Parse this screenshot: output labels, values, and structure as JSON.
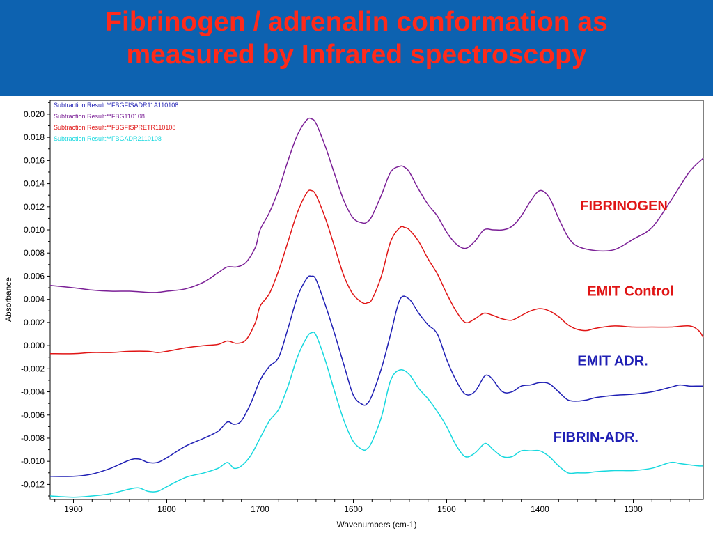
{
  "slide": {
    "title_line1": "Fibrinogen / adrenalin conformation as",
    "title_line2": "measured by Infrared spectroscopy"
  },
  "chart_data": {
    "type": "line",
    "title": "Fibrinogen / adrenalin conformation as measured by Infrared spectroscopy",
    "xlabel": "Wavenumbers (cm-1)",
    "ylabel": "Absorbance",
    "xlim": [
      1925,
      1225
    ],
    "ylim": [
      -0.0133,
      0.0212
    ],
    "x_reversed": true,
    "grid": false,
    "legend_position": "top-left",
    "x_ticks": [
      1900,
      1800,
      1700,
      1600,
      1500,
      1400,
      1300
    ],
    "x_tick_labels": [
      "1900",
      "1800",
      "1700",
      "1600",
      "1500",
      "1400",
      "1300"
    ],
    "y_ticks": [
      0.02,
      0.018,
      0.016,
      0.014,
      0.012,
      0.01,
      0.008,
      0.006,
      0.004,
      0.002,
      0.0,
      -0.002,
      -0.004,
      -0.006,
      -0.008,
      -0.01,
      -0.012
    ],
    "y_tick_labels": [
      "0.020",
      "0.018",
      "0.016",
      "0.014",
      "0.012",
      "0.010",
      "0.008",
      "0.006",
      "0.004",
      "0.002",
      "0.000",
      "-0.002",
      "-0.004",
      "-0.006",
      "-0.008",
      "-0.010",
      "-0.012"
    ],
    "series": [
      {
        "name": "Subtraction Result:**FBGFISADR11A110108",
        "color": "#1f1fb4",
        "x": [
          1925,
          1900,
          1880,
          1860,
          1840,
          1830,
          1820,
          1810,
          1800,
          1780,
          1760,
          1745,
          1735,
          1728,
          1720,
          1710,
          1700,
          1690,
          1680,
          1670,
          1660,
          1650,
          1645,
          1640,
          1630,
          1620,
          1610,
          1600,
          1590,
          1585,
          1580,
          1570,
          1560,
          1550,
          1540,
          1530,
          1520,
          1510,
          1500,
          1490,
          1480,
          1470,
          1460,
          1455,
          1450,
          1440,
          1430,
          1420,
          1410,
          1400,
          1390,
          1380,
          1370,
          1360,
          1350,
          1340,
          1320,
          1300,
          1280,
          1260,
          1250,
          1240,
          1230,
          1225
        ],
        "y": [
          -0.0113,
          -0.0113,
          -0.0111,
          -0.0106,
          -0.0099,
          -0.0098,
          -0.0101,
          -0.0101,
          -0.0097,
          -0.0087,
          -0.008,
          -0.0074,
          -0.0066,
          -0.0068,
          -0.0065,
          -0.005,
          -0.003,
          -0.0018,
          -0.001,
          0.0015,
          0.0042,
          0.0058,
          0.006,
          0.0057,
          0.0035,
          0.001,
          -0.0017,
          -0.0043,
          -0.0051,
          -0.005,
          -0.0043,
          -0.002,
          0.001,
          0.004,
          0.004,
          0.0028,
          0.0018,
          0.001,
          -0.0012,
          -0.003,
          -0.0042,
          -0.004,
          -0.0027,
          -0.0026,
          -0.003,
          -0.004,
          -0.004,
          -0.0035,
          -0.0034,
          -0.0032,
          -0.0033,
          -0.004,
          -0.0047,
          -0.0048,
          -0.0047,
          -0.0045,
          -0.0043,
          -0.0042,
          -0.004,
          -0.0036,
          -0.0034,
          -0.0035,
          -0.0035,
          -0.0035
        ]
      },
      {
        "name": "Subtraction Result:**FBG110108",
        "color": "#7b1f96",
        "x": [
          1925,
          1900,
          1880,
          1860,
          1840,
          1820,
          1810,
          1800,
          1780,
          1760,
          1745,
          1735,
          1725,
          1715,
          1705,
          1700,
          1690,
          1680,
          1670,
          1660,
          1650,
          1645,
          1640,
          1630,
          1620,
          1610,
          1600,
          1590,
          1585,
          1580,
          1570,
          1560,
          1550,
          1545,
          1540,
          1530,
          1520,
          1510,
          1500,
          1490,
          1480,
          1470,
          1460,
          1450,
          1440,
          1430,
          1420,
          1410,
          1400,
          1390,
          1380,
          1370,
          1360,
          1340,
          1320,
          1300,
          1280,
          1260,
          1240,
          1225
        ],
        "y": [
          0.0052,
          0.005,
          0.0048,
          0.0047,
          0.0047,
          0.0046,
          0.0046,
          0.0047,
          0.0049,
          0.0055,
          0.0063,
          0.0068,
          0.0068,
          0.0072,
          0.0085,
          0.01,
          0.0115,
          0.0135,
          0.016,
          0.0182,
          0.0195,
          0.0196,
          0.0192,
          0.0172,
          0.0148,
          0.0125,
          0.011,
          0.0106,
          0.0107,
          0.0112,
          0.013,
          0.015,
          0.0155,
          0.0154,
          0.015,
          0.0135,
          0.0122,
          0.0112,
          0.0098,
          0.0088,
          0.0084,
          0.009,
          0.01,
          0.01,
          0.01,
          0.0103,
          0.0112,
          0.0125,
          0.0134,
          0.0128,
          0.011,
          0.0094,
          0.0086,
          0.0082,
          0.0083,
          0.0092,
          0.0102,
          0.0125,
          0.015,
          0.0162
        ]
      },
      {
        "name": "Subtraction Result:**FBGFISPRETR110108",
        "color": "#e01515",
        "x": [
          1925,
          1900,
          1880,
          1860,
          1840,
          1820,
          1810,
          1800,
          1780,
          1760,
          1745,
          1735,
          1725,
          1715,
          1705,
          1700,
          1690,
          1680,
          1670,
          1660,
          1650,
          1645,
          1640,
          1630,
          1620,
          1610,
          1600,
          1590,
          1585,
          1580,
          1570,
          1560,
          1550,
          1545,
          1540,
          1530,
          1520,
          1510,
          1500,
          1490,
          1480,
          1470,
          1460,
          1450,
          1440,
          1430,
          1420,
          1410,
          1400,
          1390,
          1380,
          1370,
          1360,
          1350,
          1340,
          1320,
          1300,
          1280,
          1260,
          1240,
          1230,
          1225
        ],
        "y": [
          -0.0007,
          -0.0007,
          -0.0006,
          -0.0006,
          -0.0005,
          -0.0005,
          -0.0006,
          -0.0005,
          -0.0002,
          0.0,
          0.0001,
          0.0004,
          0.0002,
          0.0005,
          0.002,
          0.0034,
          0.0045,
          0.0065,
          0.009,
          0.0115,
          0.0132,
          0.0134,
          0.013,
          0.011,
          0.0085,
          0.006,
          0.0044,
          0.0037,
          0.0037,
          0.004,
          0.006,
          0.009,
          0.0102,
          0.0102,
          0.01,
          0.009,
          0.0075,
          0.0062,
          0.0045,
          0.003,
          0.002,
          0.0023,
          0.0028,
          0.0026,
          0.0023,
          0.0022,
          0.0026,
          0.003,
          0.0032,
          0.003,
          0.0025,
          0.0018,
          0.0014,
          0.0013,
          0.0015,
          0.0017,
          0.0016,
          0.0016,
          0.0016,
          0.0017,
          0.0013,
          0.0007
        ]
      },
      {
        "name": "Subtraction Result:**FBGADR2110108",
        "color": "#16d8de",
        "x": [
          1925,
          1900,
          1880,
          1860,
          1840,
          1830,
          1820,
          1810,
          1800,
          1780,
          1760,
          1745,
          1735,
          1728,
          1720,
          1710,
          1700,
          1690,
          1680,
          1670,
          1660,
          1650,
          1645,
          1640,
          1630,
          1620,
          1610,
          1600,
          1590,
          1585,
          1580,
          1570,
          1560,
          1550,
          1540,
          1530,
          1520,
          1510,
          1500,
          1490,
          1480,
          1470,
          1460,
          1455,
          1450,
          1440,
          1430,
          1420,
          1410,
          1400,
          1390,
          1380,
          1370,
          1360,
          1350,
          1340,
          1320,
          1300,
          1280,
          1260,
          1250,
          1240,
          1230,
          1225
        ],
        "y": [
          -0.013,
          -0.0131,
          -0.013,
          -0.0128,
          -0.0124,
          -0.0123,
          -0.0126,
          -0.0126,
          -0.0122,
          -0.0114,
          -0.011,
          -0.0106,
          -0.0101,
          -0.0106,
          -0.0104,
          -0.0095,
          -0.008,
          -0.0065,
          -0.0055,
          -0.0035,
          -0.001,
          0.0007,
          0.0011,
          0.0009,
          -0.0013,
          -0.004,
          -0.0065,
          -0.0083,
          -0.009,
          -0.0089,
          -0.0083,
          -0.0062,
          -0.003,
          -0.0021,
          -0.0025,
          -0.0037,
          -0.0046,
          -0.0057,
          -0.007,
          -0.0086,
          -0.0096,
          -0.0093,
          -0.0085,
          -0.0086,
          -0.009,
          -0.0096,
          -0.0096,
          -0.0091,
          -0.0091,
          -0.0091,
          -0.0096,
          -0.0104,
          -0.011,
          -0.011,
          -0.011,
          -0.0109,
          -0.0108,
          -0.0108,
          -0.0106,
          -0.0101,
          -0.0102,
          -0.0103,
          -0.0104,
          -0.0104
        ]
      }
    ],
    "annotations": [
      {
        "text": "FIBRINOGEN",
        "color": "#e01515",
        "x": 1310,
        "y": 0.0117
      },
      {
        "text": "EMIT Control",
        "color": "#e01515",
        "x": 1303,
        "y": 0.0043
      },
      {
        "text": "EMIT ADR.",
        "color": "#1f1fb4",
        "x": 1322,
        "y": -0.0017
      },
      {
        "text": "FIBRIN-ADR.",
        "color": "#1f1fb4",
        "x": 1340,
        "y": -0.0083
      }
    ]
  }
}
